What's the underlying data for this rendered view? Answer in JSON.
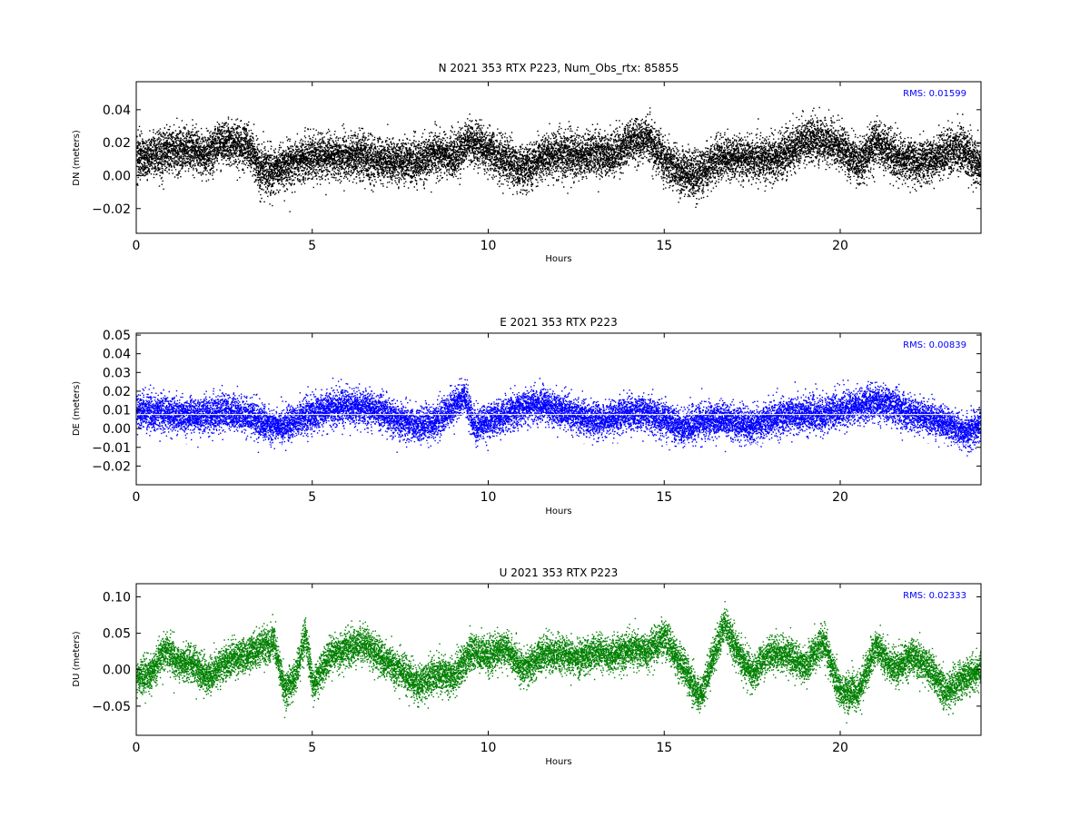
{
  "figure": {
    "background": "#ffffff"
  },
  "chart_data": [
    {
      "type": "scatter",
      "title": "N 2021 353 RTX  P223, Num_Obs_rtx: 85855",
      "xlabel": "Hours",
      "ylabel": "DN (meters)",
      "xlim": [
        0,
        24
      ],
      "ylim": [
        -0.035,
        0.057
      ],
      "xticks": [
        0,
        5,
        10,
        15,
        20
      ],
      "yticks": [
        -0.02,
        0.0,
        0.02,
        0.04
      ],
      "ytick_labels": [
        "−0.02",
        "0.00",
        "0.02",
        "0.04"
      ],
      "color": "#000000",
      "rms_label": "RMS:  0.01599",
      "rms_color": "#0000ff",
      "rms_lines": [],
      "noise_sd": 0.0065,
      "series": [
        {
          "x": [
            0,
            0.5,
            1,
            1.5,
            2,
            2.3,
            2.8,
            3.2,
            3.5,
            4,
            4.5,
            5,
            5.5,
            6,
            6.5,
            7,
            7.5,
            8,
            8.5,
            9,
            9.5,
            10,
            10.5,
            11,
            11.5,
            12,
            12.5,
            13,
            13.5,
            14,
            14.5,
            15,
            15.5,
            16,
            16.5,
            17,
            17.5,
            18,
            18.5,
            19,
            19.5,
            20,
            20.5,
            21,
            21.5,
            22,
            22.5,
            23,
            23.5,
            24
          ],
          "y": [
            0.012,
            0.013,
            0.015,
            0.017,
            0.013,
            0.02,
            0.02,
            0.018,
            0.004,
            0.004,
            0.008,
            0.012,
            0.012,
            0.012,
            0.011,
            0.009,
            0.009,
            0.009,
            0.014,
            0.012,
            0.022,
            0.015,
            0.01,
            0.004,
            0.011,
            0.013,
            0.012,
            0.014,
            0.013,
            0.02,
            0.024,
            0.01,
            0.002,
            0.002,
            0.01,
            0.012,
            0.01,
            0.01,
            0.015,
            0.022,
            0.022,
            0.018,
            0.008,
            0.02,
            0.012,
            0.009,
            0.01,
            0.014,
            0.016,
            0.006
          ]
        }
      ]
    },
    {
      "type": "scatter",
      "title": "E 2021 353 RTX  P223",
      "xlabel": "Hours",
      "ylabel": "DE (meters)",
      "xlim": [
        0,
        24
      ],
      "ylim": [
        -0.03,
        0.051
      ],
      "xticks": [
        0,
        5,
        10,
        15,
        20
      ],
      "yticks": [
        -0.02,
        -0.01,
        0.0,
        0.01,
        0.02,
        0.03,
        0.04,
        0.05
      ],
      "ytick_labels": [
        "−0.02",
        "−0.01",
        "0.00",
        "0.01",
        "0.02",
        "0.03",
        "0.04",
        "0.05"
      ],
      "color": "#0000ff",
      "rms_label": "RMS:  0.00839",
      "rms_color": "#0000ff",
      "rms_lines": [
        0.0075,
        -0.0082
      ],
      "noise_sd": 0.0045,
      "series": [
        {
          "x": [
            0,
            0.5,
            1,
            1.5,
            2,
            2.5,
            3,
            3.5,
            4,
            4.5,
            5,
            5.5,
            6,
            6.5,
            7,
            7.5,
            8,
            8.5,
            9,
            9.3,
            9.6,
            10,
            10.5,
            11,
            11.5,
            12,
            12.5,
            13,
            13.5,
            14,
            14.5,
            15,
            15.5,
            16,
            16.5,
            17,
            17.5,
            18,
            18.5,
            19,
            19.5,
            20,
            20.5,
            21,
            21.5,
            22,
            22.5,
            23,
            23.5,
            24
          ],
          "y": [
            0.01,
            0.009,
            0.008,
            0.007,
            0.008,
            0.009,
            0.008,
            0.004,
            0.001,
            0.005,
            0.008,
            0.011,
            0.012,
            0.011,
            0.009,
            0.004,
            0.002,
            0.004,
            0.012,
            0.018,
            0.002,
            0.004,
            0.008,
            0.012,
            0.013,
            0.01,
            0.007,
            0.004,
            0.006,
            0.008,
            0.008,
            0.006,
            0.0,
            0.004,
            0.005,
            0.004,
            0.002,
            0.005,
            0.007,
            0.008,
            0.008,
            0.01,
            0.012,
            0.015,
            0.012,
            0.008,
            0.006,
            0.003,
            -0.002,
            0.003
          ]
        }
      ]
    },
    {
      "type": "scatter",
      "title": "U 2021 353 RTX  P223",
      "xlabel": "Hours",
      "ylabel": "DU (meters)",
      "xlim": [
        0,
        24
      ],
      "ylim": [
        -0.09,
        0.118
      ],
      "xticks": [
        0,
        5,
        10,
        15,
        20
      ],
      "yticks": [
        -0.05,
        0.0,
        0.05,
        0.1
      ],
      "ytick_labels": [
        "−0.05",
        "0.00",
        "0.05",
        "0.10"
      ],
      "color": "#008000",
      "rms_label": "RMS:  0.02333",
      "rms_color": "#0000ff",
      "rms_lines": [],
      "noise_sd": 0.012,
      "series": [
        {
          "x": [
            0,
            0.4,
            0.8,
            1.2,
            1.6,
            2,
            2.5,
            3,
            3.5,
            3.9,
            4.2,
            4.5,
            4.8,
            5,
            5.5,
            6,
            6.5,
            7,
            7.5,
            8,
            8.5,
            9,
            9.5,
            10,
            10.5,
            11,
            11.5,
            12,
            12.5,
            13,
            13.5,
            14,
            14.5,
            15,
            15.5,
            16,
            16.3,
            16.7,
            17,
            17.5,
            18,
            18.5,
            19,
            19.5,
            20,
            20.5,
            21,
            21.5,
            22,
            22.5,
            23,
            23.5,
            24
          ],
          "y": [
            -0.01,
            -0.005,
            0.03,
            0.01,
            0.01,
            -0.01,
            0.01,
            0.02,
            0.03,
            0.04,
            -0.03,
            -0.01,
            0.05,
            -0.02,
            0.02,
            0.03,
            0.035,
            0.015,
            0.0,
            -0.02,
            -0.005,
            -0.01,
            0.025,
            0.02,
            0.03,
            0.0,
            0.02,
            0.025,
            0.015,
            0.025,
            0.02,
            0.03,
            0.025,
            0.045,
            0.005,
            -0.035,
            0.005,
            0.065,
            0.03,
            -0.005,
            0.025,
            0.02,
            0.005,
            0.04,
            -0.03,
            -0.03,
            0.035,
            0.0,
            0.02,
            0.005,
            -0.03,
            -0.01,
            0.0
          ]
        }
      ]
    }
  ]
}
